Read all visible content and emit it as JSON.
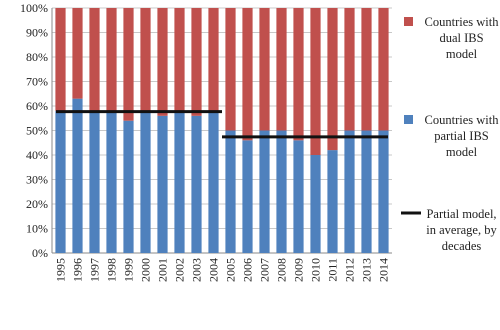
{
  "chart_data": {
    "type": "bar",
    "stacked": true,
    "categories": [
      "1995",
      "1996",
      "1997",
      "1998",
      "1999",
      "2000",
      "2001",
      "2002",
      "2003",
      "2004",
      "2005",
      "2006",
      "2007",
      "2008",
      "2009",
      "2010",
      "2011",
      "2012",
      "2013",
      "2014"
    ],
    "series": [
      {
        "name": "Countries with dual IBS model",
        "color": "#c0504d",
        "values": [
          42,
          37,
          42,
          42,
          46,
          42,
          44,
          42,
          44,
          42,
          50,
          54,
          50,
          50,
          54,
          60,
          58,
          50,
          50,
          50
        ]
      },
      {
        "name": "Countries with partial IBS model",
        "color": "#4f81bd",
        "values": [
          58,
          63,
          58,
          58,
          54,
          58,
          56,
          58,
          56,
          58,
          50,
          46,
          50,
          50,
          46,
          40,
          42,
          50,
          50,
          50
        ]
      },
      {
        "name": "Partial model, in average, by decades",
        "color": "#111111",
        "type": "line",
        "values": [
          57.7,
          57.7,
          57.7,
          57.7,
          57.7,
          57.7,
          57.7,
          57.7,
          57.7,
          57.7,
          47.4,
          47.4,
          47.4,
          47.4,
          47.4,
          47.4,
          47.4,
          47.4,
          47.4,
          47.4
        ]
      }
    ],
    "ylim": [
      0,
      100
    ],
    "yticks": [
      {
        "value": 0,
        "label": "0%"
      },
      {
        "value": 10,
        "label": "10%"
      },
      {
        "value": 20,
        "label": "20%"
      },
      {
        "value": 30,
        "label": "30%"
      },
      {
        "value": 40,
        "label": "40%"
      },
      {
        "value": 50,
        "label": "50%"
      },
      {
        "value": 60,
        "label": "60%"
      },
      {
        "value": 70,
        "label": "70%"
      },
      {
        "value": 80,
        "label": "80%"
      },
      {
        "value": 90,
        "label": "90%"
      },
      {
        "value": 100,
        "label": "100%"
      }
    ],
    "grid": true,
    "legend": "right"
  }
}
